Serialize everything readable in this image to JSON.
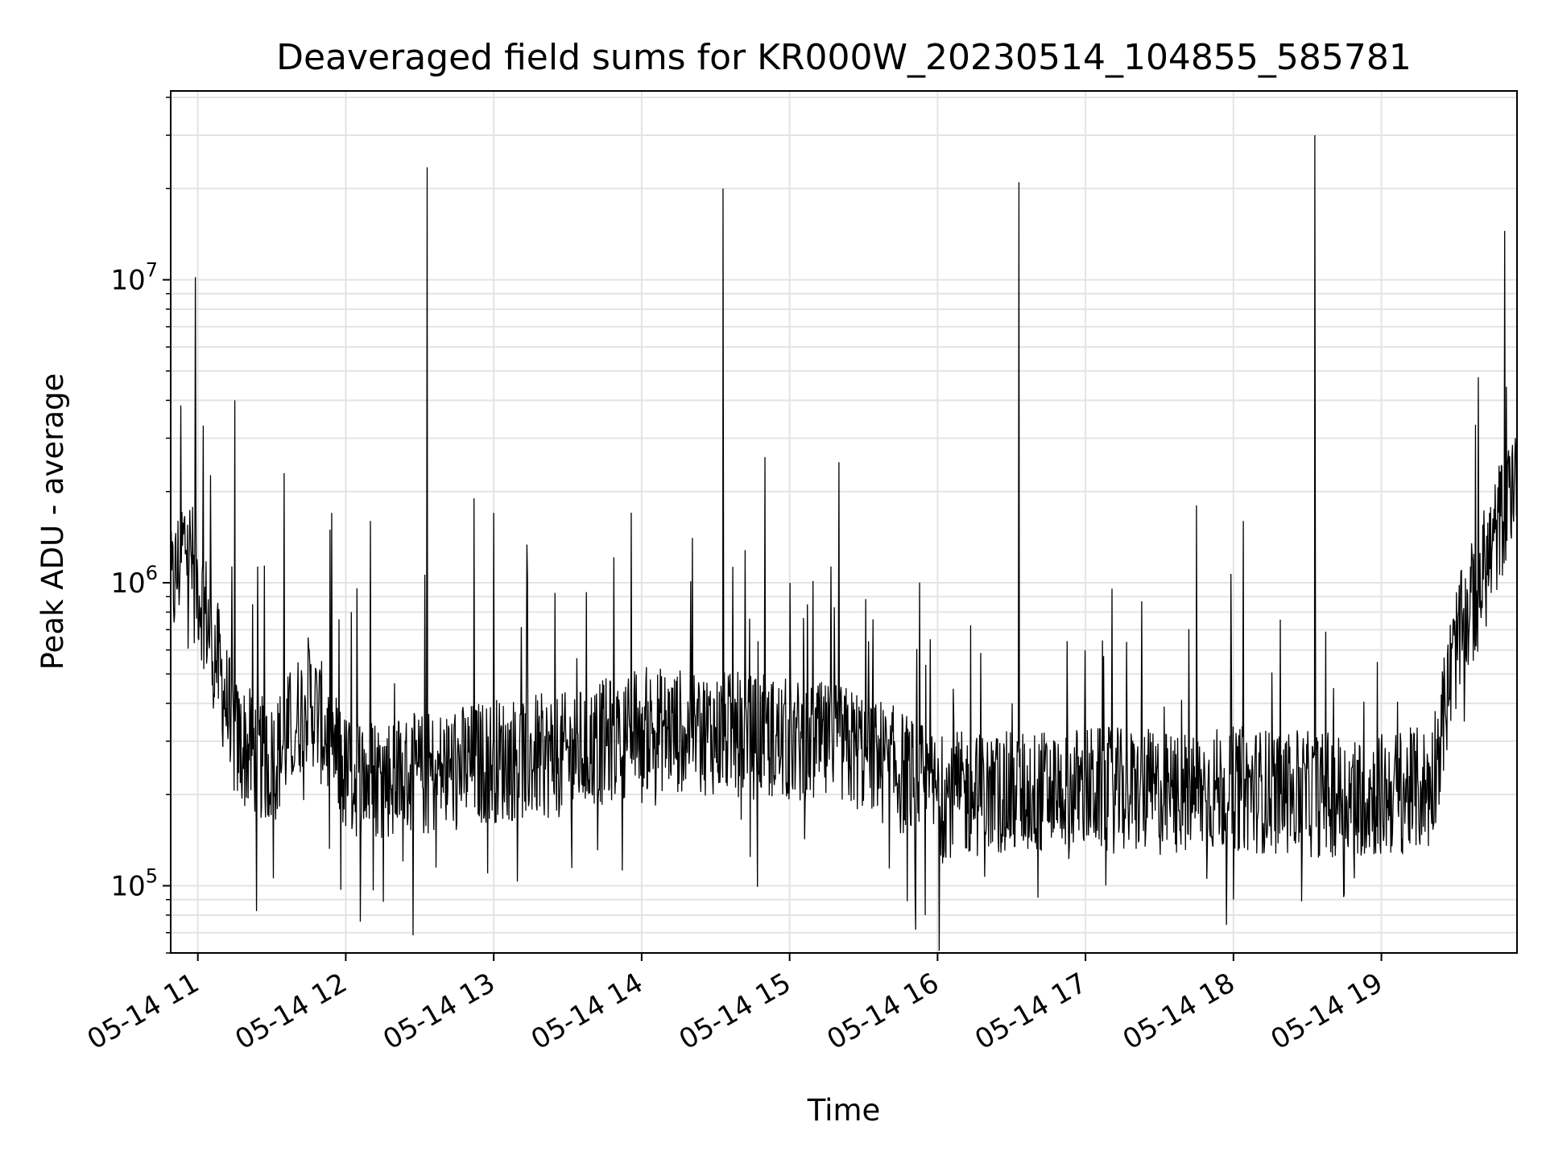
{
  "chart_data": {
    "type": "line",
    "title": "Deaveraged field sums for KR000W_20230514_104855_585781",
    "xlabel": "Time",
    "ylabel": "Peak ADU - average",
    "yscale": "log",
    "grid": true,
    "legend": "none",
    "line_color": "#000000",
    "xlim": [
      "2023-05-14 10:49",
      "2023-05-14 19:55"
    ],
    "ylim": [
      60000,
      42000000
    ],
    "x_ticks": [
      {
        "t": "2023-05-14 11:00",
        "label": "05-14 11"
      },
      {
        "t": "2023-05-14 12:00",
        "label": "05-14 12"
      },
      {
        "t": "2023-05-14 13:00",
        "label": "05-14 13"
      },
      {
        "t": "2023-05-14 14:00",
        "label": "05-14 14"
      },
      {
        "t": "2023-05-14 15:00",
        "label": "05-14 15"
      },
      {
        "t": "2023-05-14 16:00",
        "label": "05-14 16"
      },
      {
        "t": "2023-05-14 17:00",
        "label": "05-14 17"
      },
      {
        "t": "2023-05-14 18:00",
        "label": "05-14 18"
      },
      {
        "t": "2023-05-14 19:00",
        "label": "05-14 19"
      }
    ],
    "y_ticks": [
      {
        "value": 100000,
        "base": "10",
        "exp": "5"
      },
      {
        "value": 1000000,
        "base": "10",
        "exp": "6"
      },
      {
        "value": 10000000,
        "base": "10",
        "exp": "7"
      }
    ],
    "baseline": {
      "note": "typical level of the noisy series between spikes",
      "points": [
        {
          "t": "2023-05-14 10:49",
          "y": 900000
        },
        {
          "t": "2023-05-14 10:55",
          "y": 1400000
        },
        {
          "t": "2023-05-14 11:05",
          "y": 700000
        },
        {
          "t": "2023-05-14 11:15",
          "y": 300000
        },
        {
          "t": "2023-05-14 11:30",
          "y": 250000
        },
        {
          "t": "2023-05-14 11:45",
          "y": 420000
        },
        {
          "t": "2023-05-14 12:00",
          "y": 230000
        },
        {
          "t": "2023-05-14 12:30",
          "y": 230000
        },
        {
          "t": "2023-05-14 13:00",
          "y": 260000
        },
        {
          "t": "2023-05-14 13:30",
          "y": 270000
        },
        {
          "t": "2023-05-14 14:00",
          "y": 330000
        },
        {
          "t": "2023-05-14 14:30",
          "y": 320000
        },
        {
          "t": "2023-05-14 15:00",
          "y": 300000
        },
        {
          "t": "2023-05-14 15:30",
          "y": 280000
        },
        {
          "t": "2023-05-14 16:00",
          "y": 200000
        },
        {
          "t": "2023-05-14 16:30",
          "y": 200000
        },
        {
          "t": "2023-05-14 17:00",
          "y": 210000
        },
        {
          "t": "2023-05-14 17:30",
          "y": 200000
        },
        {
          "t": "2023-05-14 18:00",
          "y": 210000
        },
        {
          "t": "2023-05-14 18:30",
          "y": 200000
        },
        {
          "t": "2023-05-14 19:00",
          "y": 200000
        },
        {
          "t": "2023-05-14 19:20",
          "y": 210000
        },
        {
          "t": "2023-05-14 19:30",
          "y": 600000
        },
        {
          "t": "2023-05-14 19:45",
          "y": 1300000
        },
        {
          "t": "2023-05-14 19:55",
          "y": 2500000
        }
      ]
    },
    "spikes": [
      {
        "t": "2023-05-14 10:59",
        "y": 10200000
      },
      {
        "t": "2023-05-14 11:15",
        "y": 4000000
      },
      {
        "t": "2023-05-14 11:35",
        "y": 2300000
      },
      {
        "t": "2023-05-14 12:10",
        "y": 1600000
      },
      {
        "t": "2023-05-14 12:33",
        "y": 23500000
      },
      {
        "t": "2023-05-14 12:52",
        "y": 1900000
      },
      {
        "t": "2023-05-14 13:00",
        "y": 1700000
      },
      {
        "t": "2023-05-14 14:33",
        "y": 20000000
      },
      {
        "t": "2023-05-14 14:50",
        "y": 2600000
      },
      {
        "t": "2023-05-14 15:20",
        "y": 2500000
      },
      {
        "t": "2023-05-14 16:33",
        "y": 21000000
      },
      {
        "t": "2023-05-14 17:45",
        "y": 1800000
      },
      {
        "t": "2023-05-14 18:04",
        "y": 1600000
      },
      {
        "t": "2023-05-14 18:33",
        "y": 30000000
      },
      {
        "t": "2023-05-14 19:50",
        "y": 14500000
      }
    ],
    "dips": [
      {
        "t": "2023-05-14 11:58",
        "y": 97000
      },
      {
        "t": "2023-05-14 15:55",
        "y": 80000
      },
      {
        "t": "2023-05-14 18:00",
        "y": 90000
      }
    ]
  }
}
